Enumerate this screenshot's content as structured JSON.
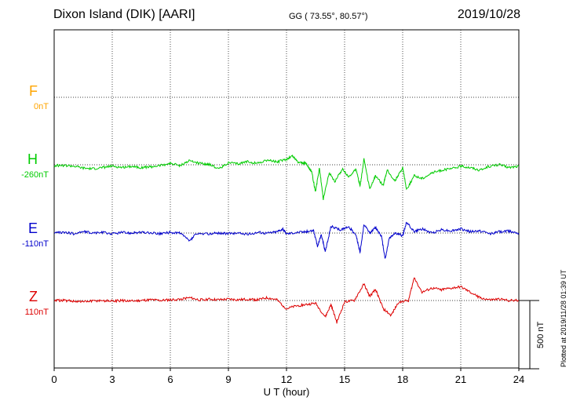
{
  "header": {
    "station": "Dixon Island (DIK)  [AARI]",
    "coords": "GG ( 73.55°,  80.57°)",
    "date": "2019/10/28"
  },
  "components": [
    {
      "name": "F",
      "baseline": "0nT",
      "color": "#ffa500"
    },
    {
      "name": "H",
      "baseline": "-260nT",
      "color": "#00cc00"
    },
    {
      "name": "E",
      "baseline": "-110nT",
      "color": "#0000cc"
    },
    {
      "name": "Z",
      "baseline": "110nT",
      "color": "#dd0000"
    }
  ],
  "scale_bar": "500 nT",
  "plotted_note": "Plotted at 2019/11/28 01:39 UT",
  "chart_data": {
    "type": "line",
    "xlabel": "U T (hour)",
    "xlim": [
      0,
      24
    ],
    "xticks": [
      0,
      3,
      6,
      9,
      12,
      15,
      18,
      21,
      24
    ],
    "grid": true,
    "scale_nT": 500,
    "series": [
      {
        "name": "H",
        "color": "#00cc00",
        "points": [
          [
            0,
            -5
          ],
          [
            0.5,
            -5
          ],
          [
            1,
            -10
          ],
          [
            1.5,
            -25
          ],
          [
            2,
            -30
          ],
          [
            2.5,
            -20
          ],
          [
            3,
            -10
          ],
          [
            3.5,
            -20
          ],
          [
            4,
            -10
          ],
          [
            4.5,
            -20
          ],
          [
            5,
            -15
          ],
          [
            5.5,
            -5
          ],
          [
            6,
            10
          ],
          [
            6.5,
            -5
          ],
          [
            7,
            30
          ],
          [
            7.5,
            10
          ],
          [
            8,
            5
          ],
          [
            8.5,
            -30
          ],
          [
            9,
            15
          ],
          [
            9.5,
            5
          ],
          [
            10,
            25
          ],
          [
            10.5,
            10
          ],
          [
            11,
            35
          ],
          [
            11.5,
            20
          ],
          [
            12,
            40
          ],
          [
            12.3,
            65
          ],
          [
            12.6,
            20
          ],
          [
            13,
            10
          ],
          [
            13.3,
            -50
          ],
          [
            13.5,
            -200
          ],
          [
            13.7,
            -20
          ],
          [
            13.9,
            -250
          ],
          [
            14.2,
            -60
          ],
          [
            14.5,
            -120
          ],
          [
            14.9,
            -30
          ],
          [
            15.2,
            -90
          ],
          [
            15.6,
            -30
          ],
          [
            15.8,
            -160
          ],
          [
            16,
            40
          ],
          [
            16.3,
            -180
          ],
          [
            16.6,
            -80
          ],
          [
            17,
            -150
          ],
          [
            17.2,
            -40
          ],
          [
            17.6,
            -120
          ],
          [
            18,
            -20
          ],
          [
            18.2,
            -180
          ],
          [
            18.6,
            -80
          ],
          [
            19,
            -100
          ],
          [
            19.5,
            -60
          ],
          [
            20,
            -40
          ],
          [
            20.5,
            -30
          ],
          [
            21,
            -10
          ],
          [
            21.5,
            -20
          ],
          [
            22,
            -40
          ],
          [
            22.5,
            -10
          ],
          [
            23,
            0
          ],
          [
            23.5,
            -20
          ],
          [
            24,
            -10
          ]
        ]
      },
      {
        "name": "E",
        "color": "#0000cc",
        "points": [
          [
            0,
            0
          ],
          [
            0.5,
            5
          ],
          [
            1,
            -5
          ],
          [
            1.5,
            10
          ],
          [
            2,
            0
          ],
          [
            2.5,
            5
          ],
          [
            3,
            -5
          ],
          [
            3.5,
            5
          ],
          [
            4,
            0
          ],
          [
            4.5,
            5
          ],
          [
            5,
            0
          ],
          [
            5.5,
            -5
          ],
          [
            6,
            5
          ],
          [
            6.5,
            0
          ],
          [
            7,
            -60
          ],
          [
            7.3,
            -10
          ],
          [
            8,
            -5
          ],
          [
            8.5,
            0
          ],
          [
            9,
            -5
          ],
          [
            9.5,
            0
          ],
          [
            10,
            -10
          ],
          [
            10.5,
            5
          ],
          [
            11,
            0
          ],
          [
            11.5,
            10
          ],
          [
            11.8,
            30
          ],
          [
            12,
            -5
          ],
          [
            12.5,
            5
          ],
          [
            13,
            10
          ],
          [
            13.4,
            20
          ],
          [
            13.6,
            -100
          ],
          [
            13.8,
            -10
          ],
          [
            14,
            -140
          ],
          [
            14.3,
            50
          ],
          [
            14.8,
            20
          ],
          [
            15.2,
            50
          ],
          [
            15.6,
            -20
          ],
          [
            15.8,
            -140
          ],
          [
            16,
            60
          ],
          [
            16.3,
            0
          ],
          [
            16.6,
            40
          ],
          [
            16.9,
            -20
          ],
          [
            17.1,
            -190
          ],
          [
            17.3,
            -40
          ],
          [
            17.6,
            0
          ],
          [
            18,
            -20
          ],
          [
            18.2,
            80
          ],
          [
            18.6,
            10
          ],
          [
            19,
            30
          ],
          [
            19.5,
            0
          ],
          [
            20,
            25
          ],
          [
            20.5,
            15
          ],
          [
            21,
            30
          ],
          [
            21.5,
            10
          ],
          [
            22,
            15
          ],
          [
            22.5,
            -5
          ],
          [
            23,
            10
          ],
          [
            23.5,
            15
          ],
          [
            24,
            0
          ]
        ]
      },
      {
        "name": "Z",
        "color": "#dd0000",
        "points": [
          [
            0,
            0
          ],
          [
            0.5,
            0
          ],
          [
            1,
            -5
          ],
          [
            1.5,
            -10
          ],
          [
            2,
            -5
          ],
          [
            2.5,
            0
          ],
          [
            3,
            -5
          ],
          [
            3.5,
            0
          ],
          [
            4,
            -5
          ],
          [
            4.5,
            0
          ],
          [
            5,
            5
          ],
          [
            5.5,
            0
          ],
          [
            6,
            5
          ],
          [
            6.5,
            10
          ],
          [
            7,
            20
          ],
          [
            7.5,
            5
          ],
          [
            8,
            10
          ],
          [
            8.5,
            5
          ],
          [
            9,
            10
          ],
          [
            9.5,
            5
          ],
          [
            10,
            10
          ],
          [
            10.5,
            5
          ],
          [
            11,
            20
          ],
          [
            11.5,
            5
          ],
          [
            12,
            -60
          ],
          [
            12.5,
            -40
          ],
          [
            13,
            -30
          ],
          [
            13.5,
            -20
          ],
          [
            14,
            -120
          ],
          [
            14.3,
            -30
          ],
          [
            14.6,
            -160
          ],
          [
            15,
            -10
          ],
          [
            15.5,
            0
          ],
          [
            16,
            120
          ],
          [
            16.3,
            30
          ],
          [
            16.6,
            80
          ],
          [
            17,
            -60
          ],
          [
            17.4,
            -110
          ],
          [
            17.8,
            -10
          ],
          [
            18.3,
            0
          ],
          [
            18.6,
            170
          ],
          [
            19,
            60
          ],
          [
            19.5,
            90
          ],
          [
            20,
            80
          ],
          [
            20.5,
            90
          ],
          [
            21,
            100
          ],
          [
            21.5,
            60
          ],
          [
            22,
            20
          ],
          [
            22.5,
            5
          ],
          [
            23,
            10
          ],
          [
            23.5,
            0
          ],
          [
            24,
            0
          ]
        ]
      }
    ]
  }
}
